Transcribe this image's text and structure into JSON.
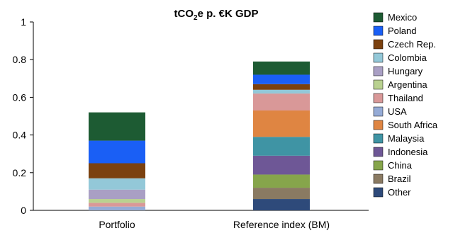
{
  "chart_data": {
    "type": "bar",
    "stacked": true,
    "title_main": "tCO",
    "title_sub": "2",
    "title_rest": "e p. €K GDP",
    "categories": [
      "Portfolio",
      "Reference index (BM)"
    ],
    "ylim": [
      0,
      1
    ],
    "yticks": [
      "0",
      "0.2",
      "0.4",
      "0.6",
      "0.8",
      "1"
    ],
    "ytick_values": [
      0,
      0.2,
      0.4,
      0.6,
      0.8,
      1
    ],
    "legend_position": "right",
    "series": [
      {
        "name": "Other",
        "color": "#2e4a7a",
        "values": [
          0.0,
          0.06
        ]
      },
      {
        "name": "Brazil",
        "color": "#8a7a62",
        "values": [
          0.0,
          0.06
        ]
      },
      {
        "name": "China",
        "color": "#86a54b",
        "values": [
          0.0,
          0.07
        ]
      },
      {
        "name": "Indonesia",
        "color": "#6e5796",
        "values": [
          0.0,
          0.1
        ]
      },
      {
        "name": "Malaysia",
        "color": "#3f94a4",
        "values": [
          0.0,
          0.1
        ]
      },
      {
        "name": "South Africa",
        "color": "#df8542",
        "values": [
          0.0,
          0.14
        ]
      },
      {
        "name": "USA",
        "color": "#95abd6",
        "values": [
          0.02,
          0.0
        ]
      },
      {
        "name": "Thailand",
        "color": "#d99898",
        "values": [
          0.02,
          0.09
        ]
      },
      {
        "name": "Argentina",
        "color": "#b9d190",
        "values": [
          0.02,
          0.0
        ]
      },
      {
        "name": "Hungary",
        "color": "#a99fc4",
        "values": [
          0.05,
          0.0
        ]
      },
      {
        "name": "Colombia",
        "color": "#93c8d8",
        "values": [
          0.06,
          0.02
        ]
      },
      {
        "name": "Czech Rep.",
        "color": "#7b410f",
        "values": [
          0.08,
          0.03
        ]
      },
      {
        "name": "Poland",
        "color": "#1a5ff5",
        "values": [
          0.12,
          0.05
        ]
      },
      {
        "name": "Mexico",
        "color": "#1d5b33",
        "values": [
          0.15,
          0.07
        ]
      }
    ]
  }
}
